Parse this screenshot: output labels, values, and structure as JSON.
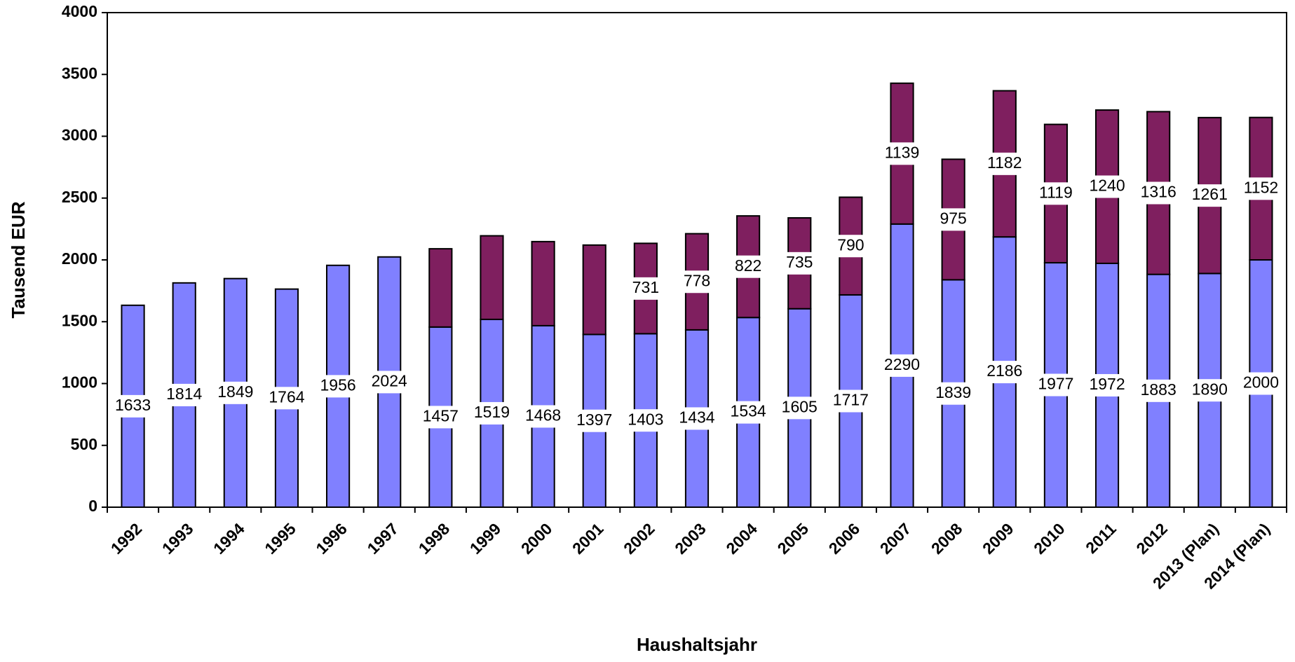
{
  "chart_data": {
    "type": "stacked-bar",
    "xlabel": "Haushaltsjahr",
    "ylabel": "Tausend EUR",
    "categories": [
      "1992",
      "1993",
      "1994",
      "1995",
      "1996",
      "1997",
      "1998",
      "1999",
      "2000",
      "2001",
      "2002",
      "2003",
      "2004",
      "2005",
      "2006",
      "2007",
      "2008",
      "2009",
      "2010",
      "2011",
      "2012",
      "2013 (Plan)",
      "2014 (Plan)"
    ],
    "series": [
      {
        "color": "#8080ff",
        "values": [
          1633,
          1814,
          1849,
          1764,
          1956,
          2024,
          1457,
          1519,
          1468,
          1397,
          1403,
          1434,
          1534,
          1605,
          1717,
          2290,
          1839,
          2186,
          1977,
          1972,
          1883,
          1890,
          2000
        ]
      },
      {
        "color": "#7f1f5f",
        "values": [
          null,
          null,
          null,
          null,
          null,
          null,
          633,
          676,
          680,
          723,
          731,
          778,
          822,
          735,
          790,
          1139,
          975,
          1182,
          1119,
          1240,
          1316,
          1261,
          1152
        ],
        "value_labels": [
          null,
          null,
          null,
          null,
          null,
          null,
          null,
          null,
          null,
          null,
          "731",
          "778",
          "822",
          "735",
          "790",
          "1139",
          "975",
          "1182",
          "1119",
          "1240",
          "1316",
          "1261",
          "1152"
        ]
      }
    ],
    "ylim": [
      0,
      4000
    ],
    "yticks": [
      0,
      500,
      1000,
      1500,
      2000,
      2500,
      3000,
      3500,
      4000
    ]
  }
}
